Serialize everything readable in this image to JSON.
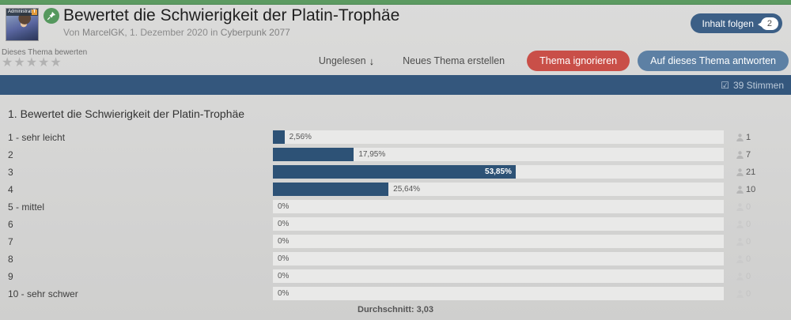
{
  "colors": {
    "accent_green": "#5c9a61",
    "primary_blue": "#34577d",
    "bar_fill_blue": "#2d5276",
    "button_red": "#c94f48",
    "button_blue": "#5d80a4",
    "follow_button_blue": "#3c5f86"
  },
  "header": {
    "avatar_banner": "Administrator",
    "avatar_badge": "T",
    "title": "Bewertet die Schwierigkeit der Platin-Trophäe",
    "byline_prefix": "Von ",
    "author": "MarcelGK",
    "byline_middle": ", 1. Dezember 2020 in ",
    "forum": "Cyberpunk 2077",
    "follow_label": "Inhalt folgen",
    "follow_count": "2"
  },
  "toolbar": {
    "rate_label": "Dieses Thema bewerten",
    "stars": "★★★★★",
    "unread_label": "Ungelesen",
    "unread_arrow": "↓",
    "new_topic_label": "Neues Thema erstellen",
    "ignore_label": "Thema ignorieren",
    "reply_label": "Auf dieses Thema antworten"
  },
  "votes_bar": {
    "checkbox_glyph": "☑",
    "label": "39 Stimmen"
  },
  "chart_data": {
    "type": "bar",
    "title": "1. Bewertet die Schwierigkeit der Platin-Trophäe",
    "categories": [
      "1 - sehr leicht",
      "2",
      "3",
      "4",
      "5 - mittel",
      "6",
      "7",
      "8",
      "9",
      "10 - sehr schwer"
    ],
    "values": [
      2.56,
      17.95,
      53.85,
      25.64,
      0,
      0,
      0,
      0,
      0,
      0
    ],
    "value_labels": [
      "2,56%",
      "17,95%",
      "53,85%",
      "25,64%",
      "0%",
      "0%",
      "0%",
      "0%",
      "0%",
      "0%"
    ],
    "votes": [
      1,
      7,
      21,
      10,
      0,
      0,
      0,
      0,
      0,
      0
    ],
    "total_votes": 39,
    "xlim": [
      0,
      100
    ],
    "average_label": "Durchschnitt: 3,03"
  }
}
